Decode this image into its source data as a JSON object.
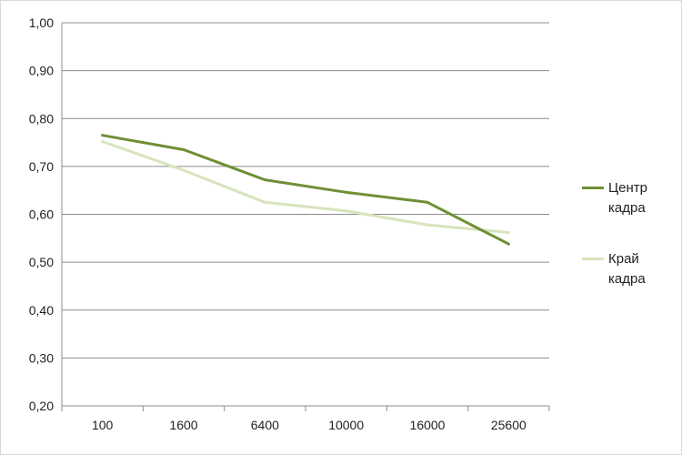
{
  "chart_data": {
    "type": "line",
    "categories": [
      "100",
      "1600",
      "6400",
      "10000",
      "16000",
      "25600"
    ],
    "series": [
      {
        "name": "Центр кадра",
        "color": "#6f8f35",
        "values": [
          0.765,
          0.735,
          0.672,
          0.646,
          0.625,
          0.538
        ]
      },
      {
        "name": "Край кадра",
        "color": "#d7e4bd",
        "values": [
          0.752,
          0.692,
          0.625,
          0.607,
          0.578,
          0.562
        ]
      }
    ],
    "ylim": [
      0.2,
      1.0
    ],
    "yticks": [
      "0,20",
      "0,30",
      "0,40",
      "0,50",
      "0,60",
      "0,70",
      "0,80",
      "0,90",
      "1,00"
    ],
    "grid": true,
    "legend_position": "right"
  }
}
